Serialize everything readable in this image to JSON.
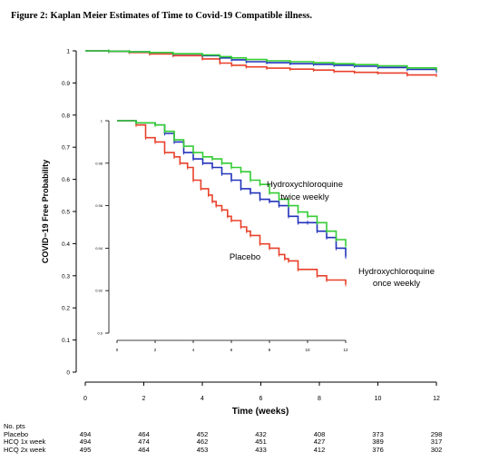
{
  "caption": "Figure 2:  Kaplan Meier Estimates of Time to Covid-19 Compatible illness.",
  "chart_data": [
    {
      "type": "line",
      "title": "",
      "xlabel": "Time (weeks)",
      "ylabel": "COVID−19 Free Probability",
      "xlim": [
        0,
        12
      ],
      "ylim": [
        0,
        1
      ],
      "xticks": [
        "0",
        "2",
        "4",
        "6",
        "8",
        "10",
        "12"
      ],
      "yticks": [
        "0",
        "0.1",
        "0.2",
        "0.3",
        "0.4",
        "0.5",
        "0.6",
        "0.7",
        "0.8",
        "0.9",
        "1"
      ],
      "colors": {
        "placebo": "#e8402a",
        "hcq1": "#2233bb",
        "hcq2": "#33cc33"
      },
      "series": [
        {
          "key": "placebo",
          "x": [
            0,
            0.8,
            1.5,
            2.2,
            3.0,
            4.0,
            4.6,
            5.0,
            5.5,
            6.2,
            7.0,
            7.8,
            8.5,
            9.2,
            10.0,
            11.0,
            12.0
          ],
          "y": [
            1.0,
            0.998,
            0.995,
            0.99,
            0.985,
            0.975,
            0.962,
            0.955,
            0.95,
            0.946,
            0.943,
            0.94,
            0.936,
            0.933,
            0.931,
            0.925,
            0.923
          ]
        },
        {
          "key": "hcq1",
          "x": [
            0,
            0.8,
            1.5,
            2.2,
            3.0,
            4.0,
            4.6,
            5.0,
            5.5,
            6.2,
            7.0,
            7.8,
            8.5,
            9.2,
            10.0,
            11.0,
            12.0
          ],
          "y": [
            1.0,
            0.999,
            0.997,
            0.995,
            0.99,
            0.985,
            0.978,
            0.972,
            0.966,
            0.963,
            0.96,
            0.958,
            0.955,
            0.952,
            0.948,
            0.942,
            0.936
          ]
        },
        {
          "key": "hcq2",
          "x": [
            0,
            0.8,
            1.5,
            2.2,
            3.0,
            4.0,
            4.6,
            5.0,
            5.5,
            6.2,
            7.0,
            7.8,
            8.5,
            9.2,
            10.0,
            11.0,
            12.0
          ],
          "y": [
            1.0,
            0.999,
            0.997,
            0.995,
            0.991,
            0.987,
            0.982,
            0.978,
            0.973,
            0.969,
            0.966,
            0.963,
            0.96,
            0.957,
            0.953,
            0.947,
            0.941
          ]
        }
      ]
    },
    {
      "type": "line",
      "title": "",
      "inset": true,
      "xlim": [
        0,
        12
      ],
      "ylim": [
        0.9,
        1.0
      ],
      "xticks": [
        "0",
        "2",
        "4",
        "6",
        "8",
        "10",
        "12"
      ],
      "yticks": [
        "0.9",
        "0.92",
        "0.94",
        "0.96",
        "0.98",
        "1"
      ],
      "series": [
        {
          "key": "placebo",
          "name": "Placebo",
          "x": [
            0,
            1.0,
            1.5,
            2.0,
            2.5,
            3.0,
            3.3,
            3.7,
            4.0,
            4.4,
            4.8,
            5.0,
            5.2,
            5.5,
            5.8,
            6.0,
            6.5,
            6.8,
            7.0,
            7.5,
            8.0,
            8.5,
            8.8,
            9.0,
            9.5,
            10.5,
            11.0,
            12.0
          ],
          "y": [
            1.0,
            0.998,
            0.992,
            0.99,
            0.985,
            0.983,
            0.98,
            0.978,
            0.972,
            0.968,
            0.965,
            0.962,
            0.96,
            0.958,
            0.955,
            0.953,
            0.95,
            0.948,
            0.946,
            0.942,
            0.94,
            0.937,
            0.935,
            0.934,
            0.93,
            0.927,
            0.925,
            0.923
          ]
        },
        {
          "key": "hcq1",
          "name": "Hydroxychloroquine once weekly",
          "x": [
            0,
            1.0,
            2.0,
            2.5,
            3.0,
            3.5,
            4.0,
            4.5,
            5.0,
            5.5,
            6.0,
            6.5,
            7.0,
            7.5,
            8.0,
            8.5,
            9.0,
            9.5,
            10.0,
            10.5,
            11.0,
            11.5,
            12.0
          ],
          "y": [
            1.0,
            0.999,
            0.998,
            0.994,
            0.99,
            0.985,
            0.982,
            0.98,
            0.978,
            0.975,
            0.972,
            0.968,
            0.966,
            0.963,
            0.962,
            0.96,
            0.955,
            0.952,
            0.952,
            0.948,
            0.945,
            0.94,
            0.936
          ]
        },
        {
          "key": "hcq2",
          "name": "Hydroxychloroquine twice weekly",
          "x": [
            0,
            1.0,
            2.0,
            2.5,
            3.0,
            3.5,
            4.0,
            4.5,
            5.0,
            5.5,
            6.0,
            6.5,
            7.0,
            7.5,
            8.0,
            8.5,
            9.0,
            9.5,
            10.0,
            10.5,
            11.0,
            11.5,
            12.0
          ],
          "y": [
            1.0,
            0.999,
            0.998,
            0.995,
            0.991,
            0.988,
            0.985,
            0.983,
            0.982,
            0.98,
            0.978,
            0.976,
            0.972,
            0.97,
            0.966,
            0.963,
            0.96,
            0.957,
            0.955,
            0.952,
            0.948,
            0.944,
            0.941
          ]
        }
      ],
      "annotations": {
        "hcq2_line1": "Hydroxychloroquine",
        "hcq2_line2": "twice weekly",
        "placebo": "Placebo",
        "hcq1_line1": "Hydroxychloroquine",
        "hcq1_line2": "once weekly"
      }
    }
  ],
  "risk_table": {
    "header": "No. pts",
    "times": [
      0,
      2,
      4,
      6,
      8,
      10,
      12
    ],
    "rows": [
      {
        "label": "Placebo",
        "values": [
          "494",
          "464",
          "452",
          "432",
          "408",
          "373",
          "298"
        ]
      },
      {
        "label": "HCQ 1x week",
        "values": [
          "494",
          "474",
          "462",
          "451",
          "427",
          "389",
          "317"
        ]
      },
      {
        "label": "HCQ 2x week",
        "values": [
          "495",
          "464",
          "453",
          "433",
          "412",
          "376",
          "302"
        ]
      }
    ]
  }
}
